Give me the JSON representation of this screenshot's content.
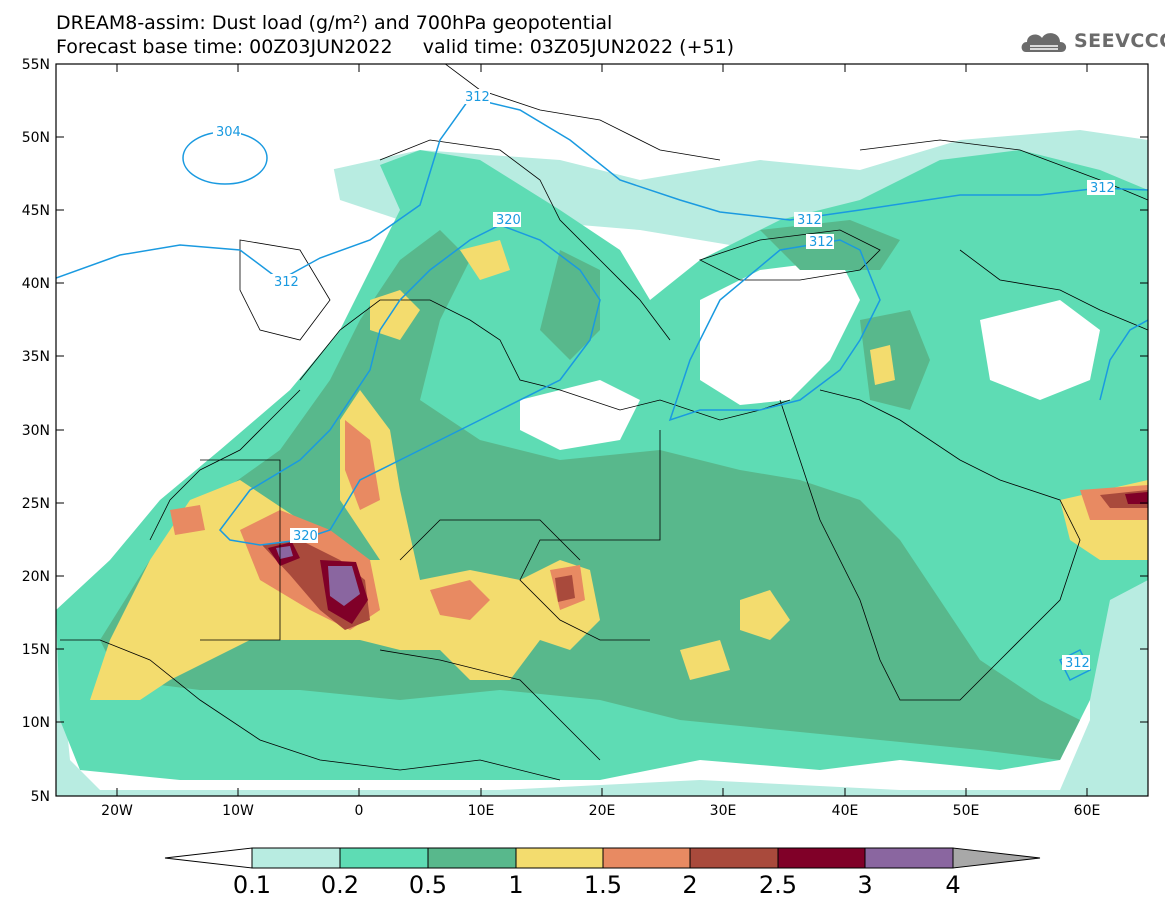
{
  "header": {
    "line1": "DREAM8-assim: Dust load (g/m²) and 700hPa geopotential",
    "line2": "Forecast base time: 00Z03JUN2022     valid time: 03Z05JUN2022 (+51)"
  },
  "logo": {
    "text": "SEEVCCC",
    "icon": "cloud-logo-icon"
  },
  "axes": {
    "lat_labels": [
      "55N",
      "50N",
      "45N",
      "40N",
      "35N",
      "30N",
      "25N",
      "20N",
      "15N",
      "10N",
      "5N"
    ],
    "lon_labels": [
      "20W",
      "10W",
      "0",
      "10E",
      "20E",
      "30E",
      "40E",
      "50E",
      "60E"
    ]
  },
  "contour_labels": [
    "312",
    "304",
    "320",
    "312",
    "312",
    "312",
    "320",
    "312",
    "312"
  ],
  "colorbar": {
    "ticks": [
      "0.1",
      "0.2",
      "0.5",
      "1",
      "1.5",
      "2",
      "2.5",
      "3",
      "4"
    ],
    "colors": [
      "#ffffff",
      "#b8ece1",
      "#5edcb4",
      "#58b88c",
      "#f3dc6e",
      "#e88a62",
      "#a94a3c",
      "#800028",
      "#8a66a0",
      "#a8a8a8"
    ]
  },
  "palette": {
    "ocean": "#ffffff",
    "contour": "#1a9ae0",
    "border": "#000000"
  }
}
